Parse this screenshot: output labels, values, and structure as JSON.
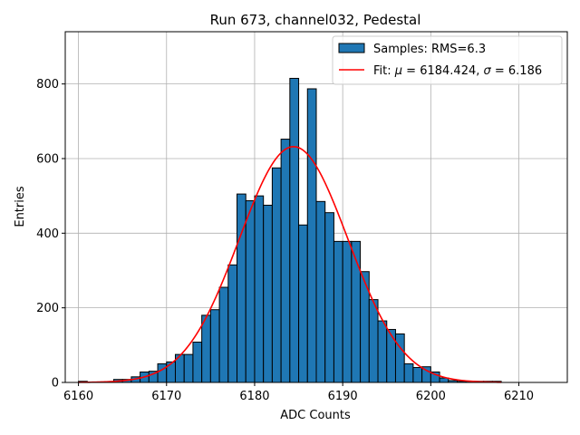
{
  "chart_data": {
    "type": "bar",
    "title": "Run 673, channel032, Pedestal",
    "xlabel": "ADC Counts",
    "ylabel": "Entries",
    "xlim": [
      6158.5,
      6215.5
    ],
    "ylim": [
      0,
      940
    ],
    "xticks": [
      6160,
      6170,
      6180,
      6190,
      6200,
      6210
    ],
    "yticks": [
      0,
      200,
      400,
      600,
      800
    ],
    "grid": true,
    "legend_position": "top-right",
    "bar_color": "#1f77b4",
    "fit_color": "#ff0000",
    "bins": {
      "edges": [
        6160,
        6161,
        6162,
        6163,
        6164,
        6165,
        6166,
        6167,
        6168,
        6169,
        6170,
        6171,
        6172,
        6173,
        6174,
        6175,
        6176,
        6177,
        6178,
        6179,
        6180,
        6181,
        6182,
        6183,
        6184,
        6185,
        6186,
        6187,
        6188,
        6189,
        6190,
        6191,
        6192,
        6193,
        6194,
        6195,
        6196,
        6197,
        6198,
        6199,
        6200,
        6201,
        6202,
        6203,
        6204,
        6205,
        6206,
        6207,
        6208
      ],
      "counts": [
        3,
        0,
        0,
        0,
        8,
        8,
        15,
        28,
        30,
        50,
        55,
        75,
        75,
        108,
        180,
        195,
        255,
        315,
        505,
        487,
        500,
        475,
        575,
        652,
        815,
        422,
        787,
        485,
        455,
        378,
        378,
        378,
        297,
        222,
        165,
        142,
        130,
        50,
        40,
        42,
        28,
        12,
        5,
        3,
        3,
        3,
        3,
        3
      ]
    },
    "fit": {
      "mu": 6184.424,
      "sigma": 6.186,
      "amplitude": 632,
      "x_range": [
        6160,
        6208
      ]
    },
    "legend": [
      {
        "label": "Samples: RMS=6.3",
        "kind": "bar"
      },
      {
        "label_prefix": "Fit: ",
        "mu_symbol": "μ",
        "mu_text": " = 6184.424, ",
        "sigma_symbol": "σ",
        "sigma_text": " = 6.186",
        "kind": "line"
      }
    ]
  }
}
